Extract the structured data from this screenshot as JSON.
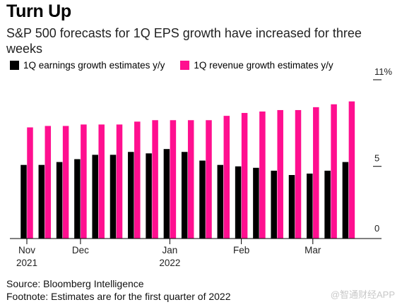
{
  "title": "Turn Up",
  "subtitle": "S&P 500 forecasts for 1Q EPS growth have increased for three weeks",
  "source": "Source: Bloomberg Intelligence",
  "footnote": "Footnote: Estimates are for the first quarter of 2022",
  "watermark": "@智通财经APP",
  "colors": {
    "earnings": "#000000",
    "revenue": "#ff0f8f",
    "axis": "#000000"
  },
  "chart_data": {
    "type": "bar",
    "legend_position": "top-left",
    "grid": false,
    "ylim": [
      0,
      11
    ],
    "y_ticks": [
      {
        "value": 0,
        "label": "0"
      },
      {
        "value": 5,
        "label": "5"
      },
      {
        "value": 11,
        "label": "11%"
      }
    ],
    "x_ticks": [
      {
        "index": 0,
        "label": "Nov",
        "sublabel": "2021"
      },
      {
        "index": 3,
        "label": "Dec",
        "sublabel": ""
      },
      {
        "index": 8,
        "label": "Jan",
        "sublabel": "2022"
      },
      {
        "index": 12,
        "label": "Feb",
        "sublabel": ""
      },
      {
        "index": 16,
        "label": "Mar",
        "sublabel": ""
      }
    ],
    "series": [
      {
        "name": "1Q earnings growth estimates y/y",
        "color": "#000000",
        "values": [
          5.1,
          5.1,
          5.3,
          5.5,
          5.8,
          5.8,
          6.0,
          5.9,
          6.2,
          6.0,
          5.4,
          5.1,
          5.0,
          4.9,
          4.7,
          4.4,
          4.5,
          4.7,
          5.3
        ]
      },
      {
        "name": "1Q revenue growth estimates y/y",
        "color": "#ff0f8f",
        "values": [
          7.7,
          7.8,
          7.8,
          7.9,
          7.9,
          7.9,
          8.1,
          8.2,
          8.2,
          8.2,
          8.2,
          8.5,
          8.7,
          8.8,
          8.9,
          8.9,
          9.1,
          9.3,
          9.5
        ]
      }
    ]
  }
}
